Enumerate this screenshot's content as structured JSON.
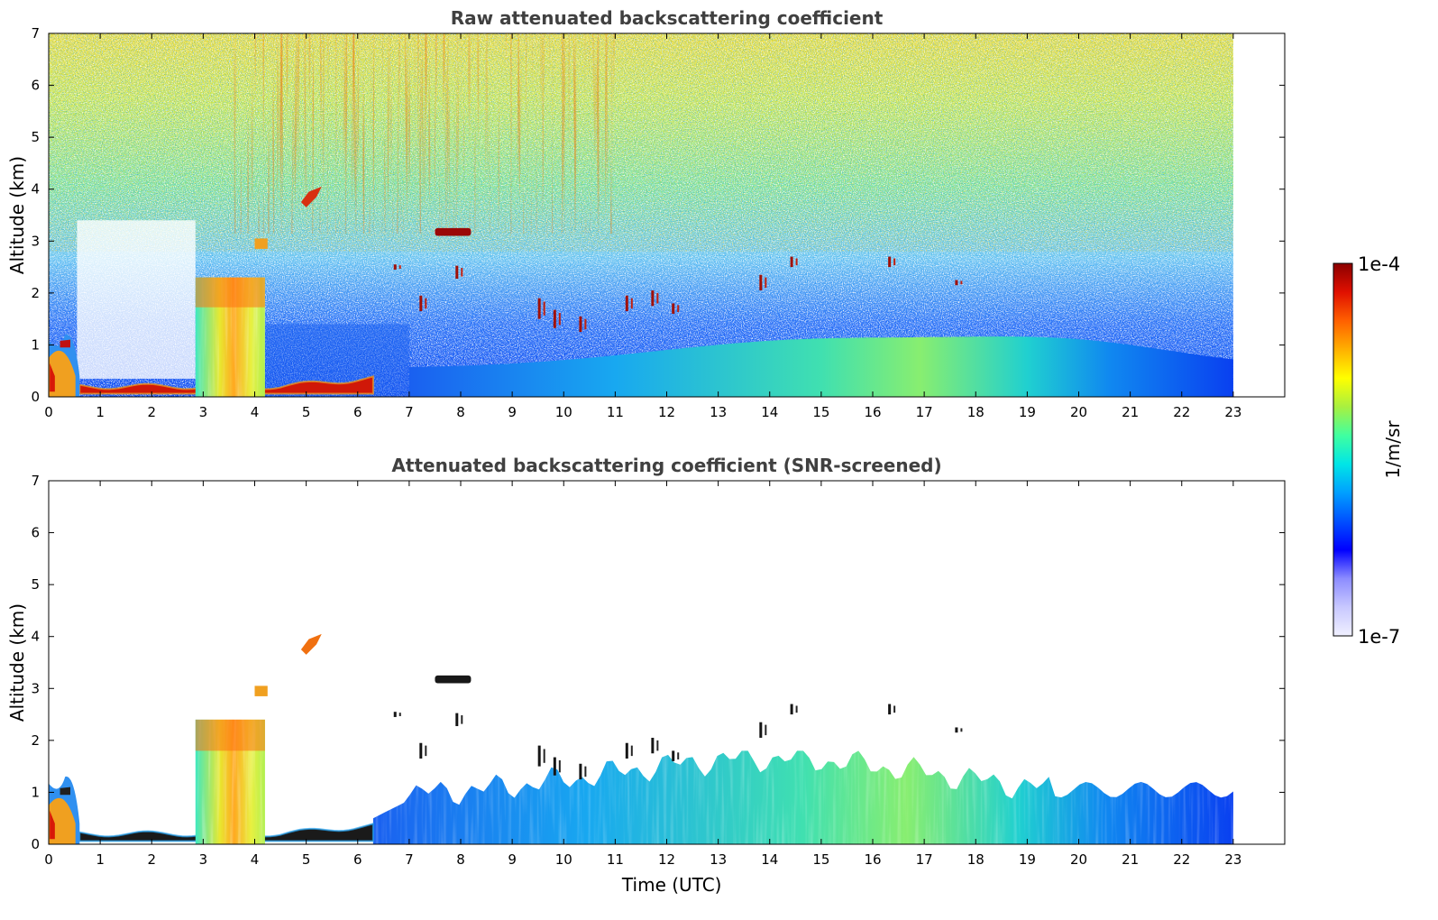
{
  "figure": {
    "colorbar": {
      "max_label": "1e-4",
      "min_label": "1e-7",
      "unit_label": "1/m/sr",
      "scale": "log",
      "range": [
        1e-07,
        0.0001
      ],
      "colors": [
        "#f0f0ff",
        "#c8c8ff",
        "#8c8cff",
        "#0000ff",
        "#0050ff",
        "#00a0ff",
        "#00e6e6",
        "#40ffa0",
        "#a8f040",
        "#ffff00",
        "#ffb000",
        "#ff6000",
        "#e01000",
        "#8b0000"
      ]
    }
  },
  "chart_data": [
    {
      "type": "heatmap",
      "title": "Raw attenuated backscattering coefficient",
      "xlabel": "",
      "ylabel": "Altitude (km)",
      "xlim": [
        0,
        24
      ],
      "ylim": [
        0,
        7
      ],
      "x_ticks": [
        "0",
        "1",
        "2",
        "3",
        "4",
        "5",
        "6",
        "7",
        "8",
        "9",
        "10",
        "11",
        "12",
        "13",
        "14",
        "15",
        "16",
        "17",
        "18",
        "19",
        "20",
        "21",
        "22",
        "23"
      ],
      "y_ticks": [
        "0",
        "1",
        "2",
        "3",
        "4",
        "5",
        "6",
        "7"
      ],
      "data_extent_hours": [
        0,
        23
      ],
      "features": [
        {
          "feature": "boundary layer aerosol",
          "time": [
            0,
            0.6
          ],
          "altitude": [
            0,
            1.2
          ]
        },
        {
          "feature": "near-surface dense layer",
          "time": [
            0.6,
            6.3
          ],
          "altitude": [
            0.05,
            0.4
          ]
        },
        {
          "feature": "cloud column",
          "time": [
            2.85,
            4.2
          ],
          "altitude": [
            0,
            2.3
          ]
        },
        {
          "feature": "cloud layer",
          "time": [
            7.5,
            8.2
          ],
          "altitude": [
            3.1,
            3.25
          ]
        },
        {
          "feature": "elevated layer",
          "time": [
            4.9,
            5.3
          ],
          "altitude": [
            3.6,
            4.1
          ]
        },
        {
          "feature": "daytime boundary layer",
          "time": [
            7,
            23
          ],
          "altitude": [
            0,
            1.2
          ]
        }
      ]
    },
    {
      "type": "heatmap",
      "title": "Attenuated backscattering coefficient (SNR-screened)",
      "xlabel": "Time (UTC)",
      "ylabel": "Altitude (km)",
      "xlim": [
        0,
        24
      ],
      "ylim": [
        0,
        7
      ],
      "x_ticks": [
        "0",
        "1",
        "2",
        "3",
        "4",
        "5",
        "6",
        "7",
        "8",
        "9",
        "10",
        "11",
        "12",
        "13",
        "14",
        "15",
        "16",
        "17",
        "18",
        "19",
        "20",
        "21",
        "22",
        "23"
      ],
      "y_ticks": [
        "0",
        "1",
        "2",
        "3",
        "4",
        "5",
        "6",
        "7"
      ],
      "data_extent_hours": [
        0,
        23
      ],
      "features": [
        {
          "feature": "boundary layer aerosol",
          "time": [
            0,
            0.6
          ],
          "altitude": [
            0,
            1.3
          ]
        },
        {
          "feature": "near-surface dense layer",
          "time": [
            0.6,
            6.3
          ],
          "altitude": [
            0.05,
            0.4
          ]
        },
        {
          "feature": "cloud column",
          "time": [
            2.85,
            4.2
          ],
          "altitude": [
            0,
            2.4
          ]
        },
        {
          "feature": "cloud layer",
          "time": [
            7.5,
            8.2
          ],
          "altitude": [
            3.1,
            3.25
          ]
        },
        {
          "feature": "elevated layer",
          "time": [
            4.9,
            5.3
          ],
          "altitude": [
            3.6,
            4.1
          ]
        },
        {
          "feature": "daytime boundary layer",
          "time": [
            6.3,
            23
          ],
          "altitude": [
            0,
            1.8
          ]
        }
      ]
    }
  ]
}
